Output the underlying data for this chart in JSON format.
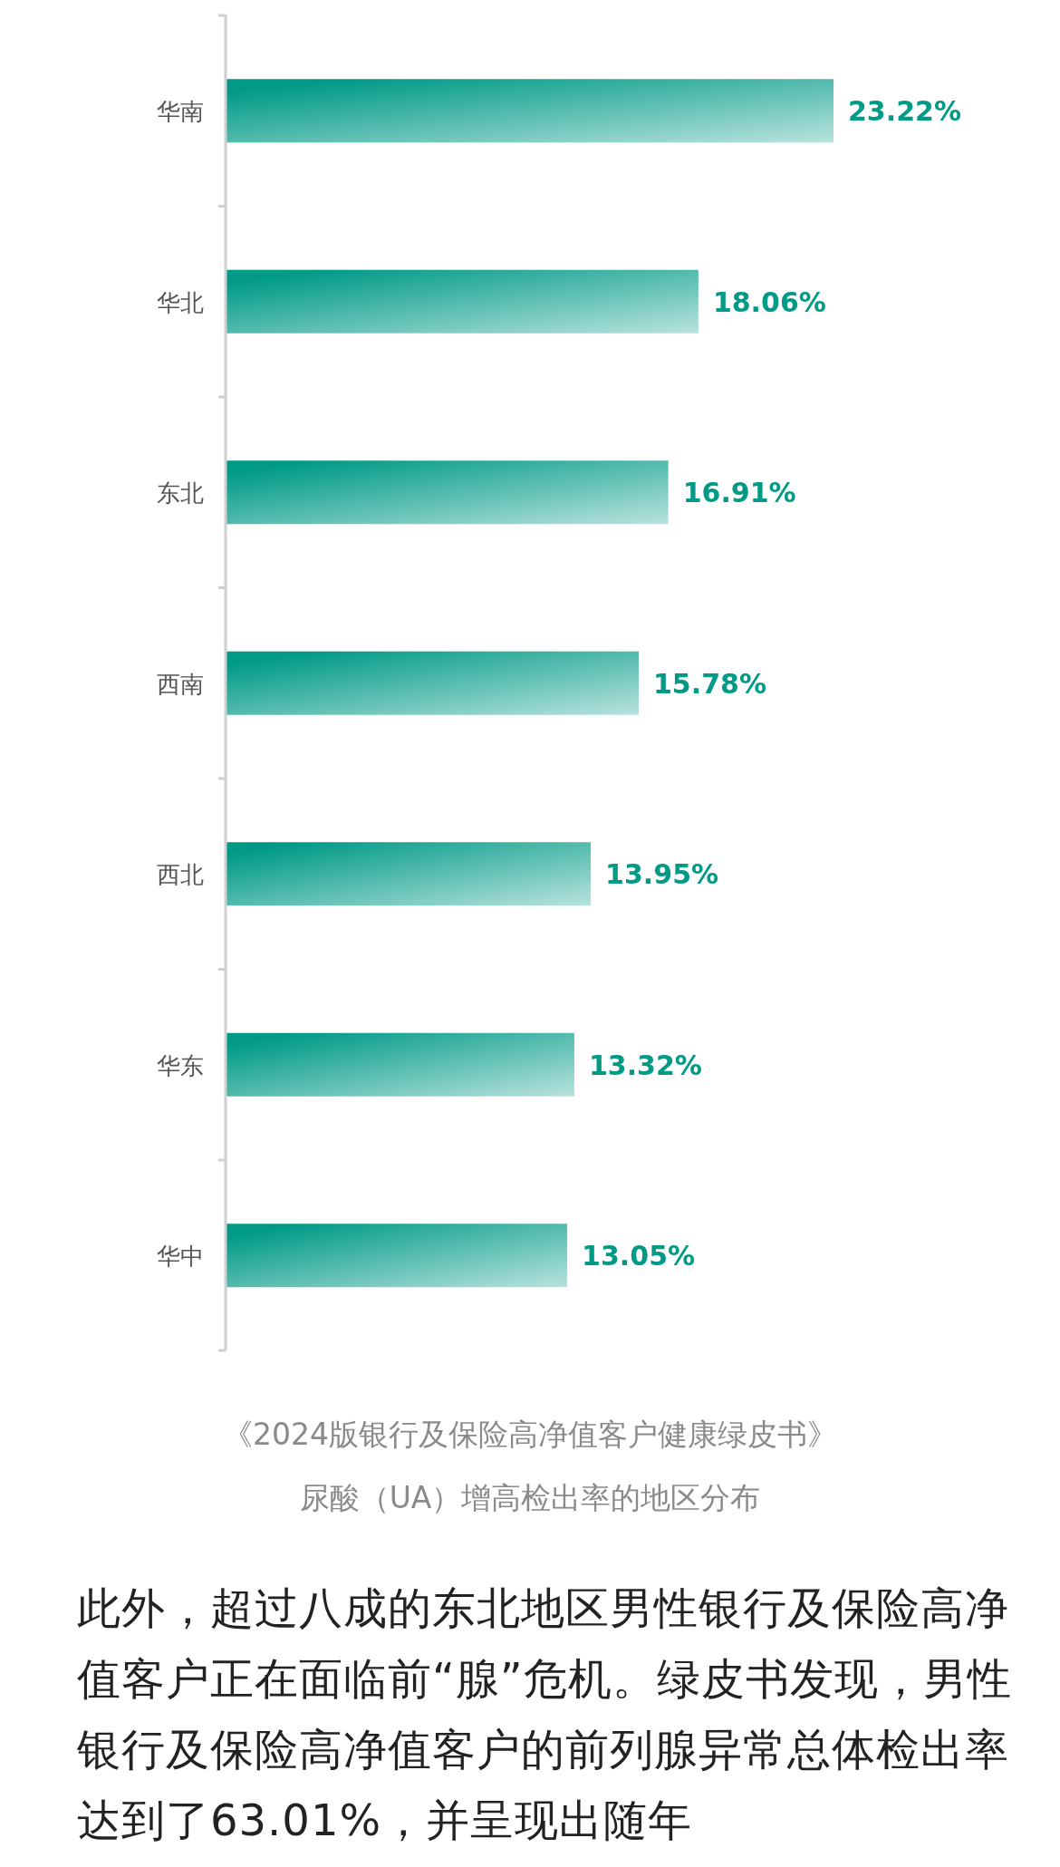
{
  "chart_data": {
    "type": "bar",
    "orientation": "horizontal",
    "title": "《2024版银行及保险高净值客户健康绿皮书》",
    "subtitle": "尿酸（UA）增高检出率的地区分布",
    "categories": [
      "华南",
      "华北",
      "东北",
      "西南",
      "西北",
      "华东",
      "华中"
    ],
    "values": [
      23.22,
      18.06,
      16.91,
      15.78,
      13.95,
      13.32,
      13.05
    ],
    "value_labels": [
      "23.22%",
      "18.06%",
      "16.91%",
      "15.78%",
      "13.95%",
      "13.32%",
      "13.05%"
    ],
    "color": "#009a87",
    "annotations": [
      "此外，超过八成的东北地区男性银行及保险高净值客户正在面临前“腺”危机。绿皮书发现，男性银行及保险高净值客户的前列腺异常总体检出率达到了63.01%，并呈现出随年"
    ]
  }
}
